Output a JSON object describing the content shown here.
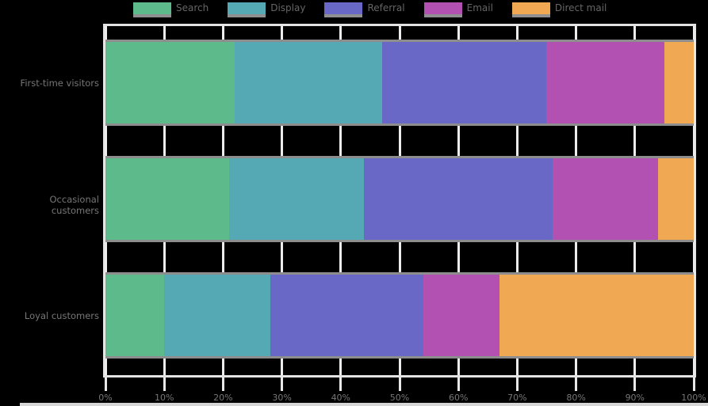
{
  "chart_data": {
    "type": "bar",
    "orientation": "horizontal",
    "stacked": true,
    "units": "percent",
    "title": "",
    "xlabel": "",
    "ylabel": "",
    "xlim": [
      0,
      100
    ],
    "grid": true,
    "legend_position": "top",
    "categories": [
      "First-time visitors",
      "Occasional customers",
      "Loyal customers"
    ],
    "series": [
      {
        "name": "Search",
        "color": "#5cba8b",
        "values": [
          22,
          21,
          10
        ]
      },
      {
        "name": "Display",
        "color": "#55a9b4",
        "values": [
          25,
          23,
          18
        ]
      },
      {
        "name": "Referral",
        "color": "#6a68c6",
        "values": [
          28,
          32,
          26
        ]
      },
      {
        "name": "Email",
        "color": "#b351b3",
        "values": [
          20,
          18,
          13
        ]
      },
      {
        "name": "Direct mail",
        "color": "#f0a952",
        "values": [
          5,
          6,
          33
        ]
      }
    ],
    "x_ticks": [
      "0%",
      "10%",
      "20%",
      "30%",
      "40%",
      "50%",
      "60%",
      "70%",
      "80%",
      "90%",
      "100%"
    ]
  },
  "style_colors": {
    "background": "#000000",
    "gridline": "#ececec",
    "spine": "#e3e3e3",
    "bar_edge": "#8d8d8d",
    "tick_mark": "#e8e8e8",
    "text": "#767676",
    "legend_text": "#666666",
    "bottom_strip": "#d6d6d6"
  }
}
